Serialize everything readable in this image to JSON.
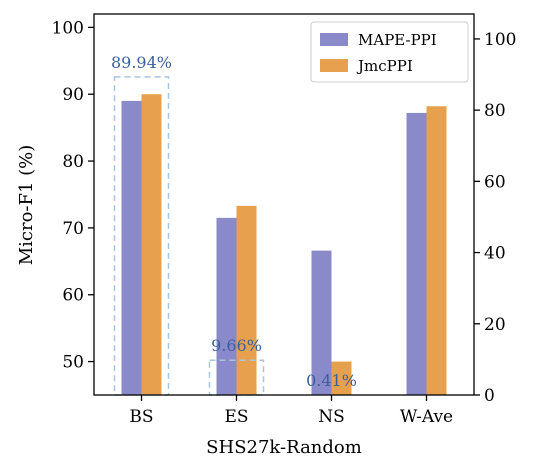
{
  "chart_data": {
    "type": "bar",
    "categories": [
      "BS",
      "ES",
      "NS",
      "W-Ave"
    ],
    "series": [
      {
        "name": "MAPE-PPI",
        "color": "#8a8acb",
        "values": [
          89.0,
          71.5,
          66.6,
          87.2
        ]
      },
      {
        "name": "JmcPPI",
        "color": "#e6a04e",
        "values": [
          90.0,
          73.3,
          50.0,
          88.2
        ]
      }
    ],
    "xlabel": "SHS27k-Random",
    "ylabel": "Micro-F1 (%)",
    "ylim": [
      45,
      102
    ],
    "y_ticks": [
      50,
      60,
      70,
      80,
      90,
      100
    ],
    "y2lim": [
      0,
      107
    ],
    "y2_ticks": [
      0,
      20,
      40,
      60,
      80,
      100
    ],
    "legend_position": "top-right",
    "grid": false,
    "annotations": [
      {
        "text": "89.94%",
        "category": "BS",
        "y_low": 45,
        "y_high": 92.6
      },
      {
        "text": "9.66%",
        "category": "ES",
        "y_low": 45,
        "y_high": 50.2
      },
      {
        "text": "0.41%",
        "category": "NS",
        "y_low": 45,
        "y_high": 45
      }
    ]
  }
}
